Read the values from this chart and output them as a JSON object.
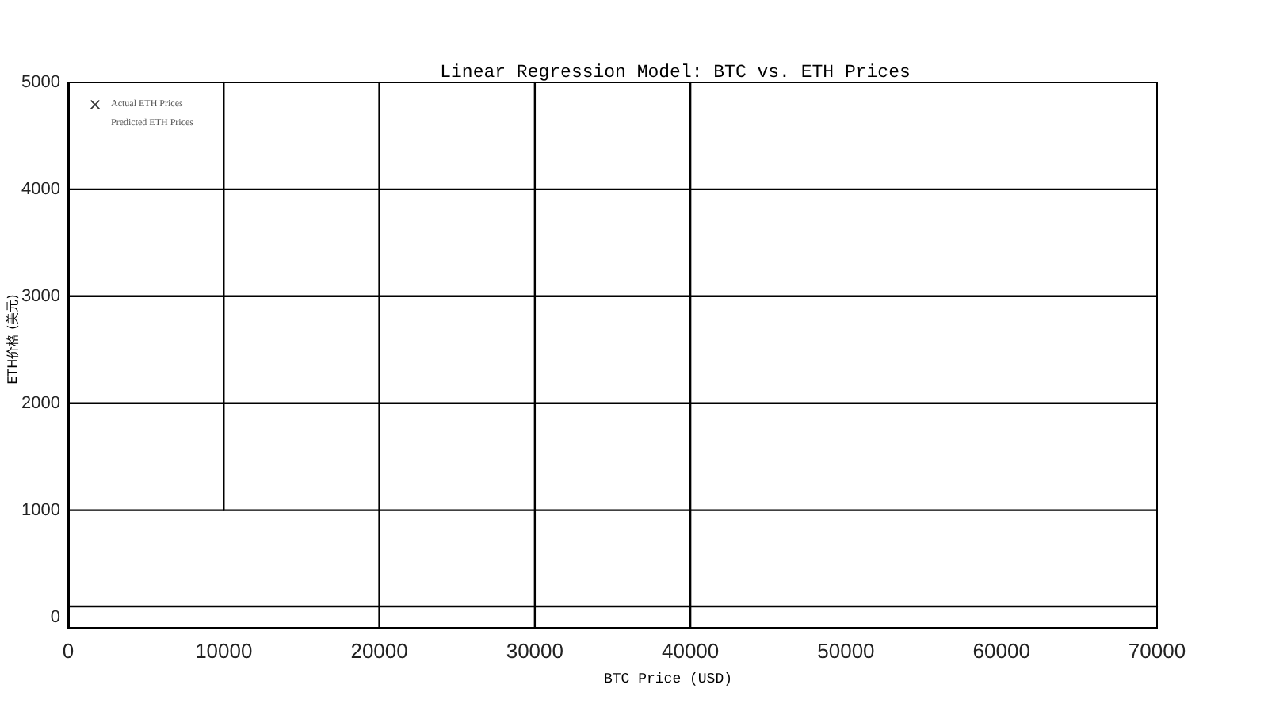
{
  "chart_data": {
    "type": "line",
    "title": "Linear Regression Model: BTC vs. ETH Prices",
    "xlabel": "BTC Price (USD)",
    "ylabel": "ETH价格 (美元)",
    "xlim": [
      0,
      70000
    ],
    "xticks": [
      0,
      10000,
      20000,
      30000,
      40000,
      50000,
      60000,
      70000
    ],
    "ylim": [
      -100,
      5000
    ],
    "yticks": [
      0,
      1000,
      2000,
      3000,
      4000,
      5000
    ],
    "grid": false,
    "legend": "top left",
    "series": [
      {
        "name": "Actual ETH Prices",
        "type": "scatter",
        "marker": "cross",
        "color": "#000000"
      },
      {
        "name": "Predicted ETH Prices",
        "type": "line"
      },
      {
        "color": "#000000",
        "x": [
          0,
          70000
        ],
        "values": [
          4000,
          4000
        ]
      },
      {
        "color": "#000000",
        "x": [
          0,
          70000
        ],
        "values": [
          3000,
          3000
        ]
      },
      {
        "color": "#000000",
        "x": [
          0,
          70000
        ],
        "values": [
          2000,
          2000
        ]
      },
      {
        "color": "#000000",
        "x": [
          0,
          70000
        ],
        "values": [
          1000,
          1000
        ]
      },
      {
        "color": "#000000",
        "x": [
          0,
          70000
        ],
        "values": [
          100,
          100
        ]
      },
      {
        "color": "#000000",
        "x": [
          10000,
          10000
        ],
        "values": [
          1000,
          5000
        ]
      },
      {
        "color": "#000000",
        "x": [
          20000,
          20000
        ],
        "values": [
          -100,
          5000
        ]
      },
      {
        "color": "#000000",
        "x": [
          30000,
          30000
        ],
        "values": [
          -100,
          5000
        ]
      },
      {
        "color": "#000000",
        "x": [
          40000,
          40000
        ],
        "values": [
          -100,
          5000
        ]
      }
    ]
  }
}
